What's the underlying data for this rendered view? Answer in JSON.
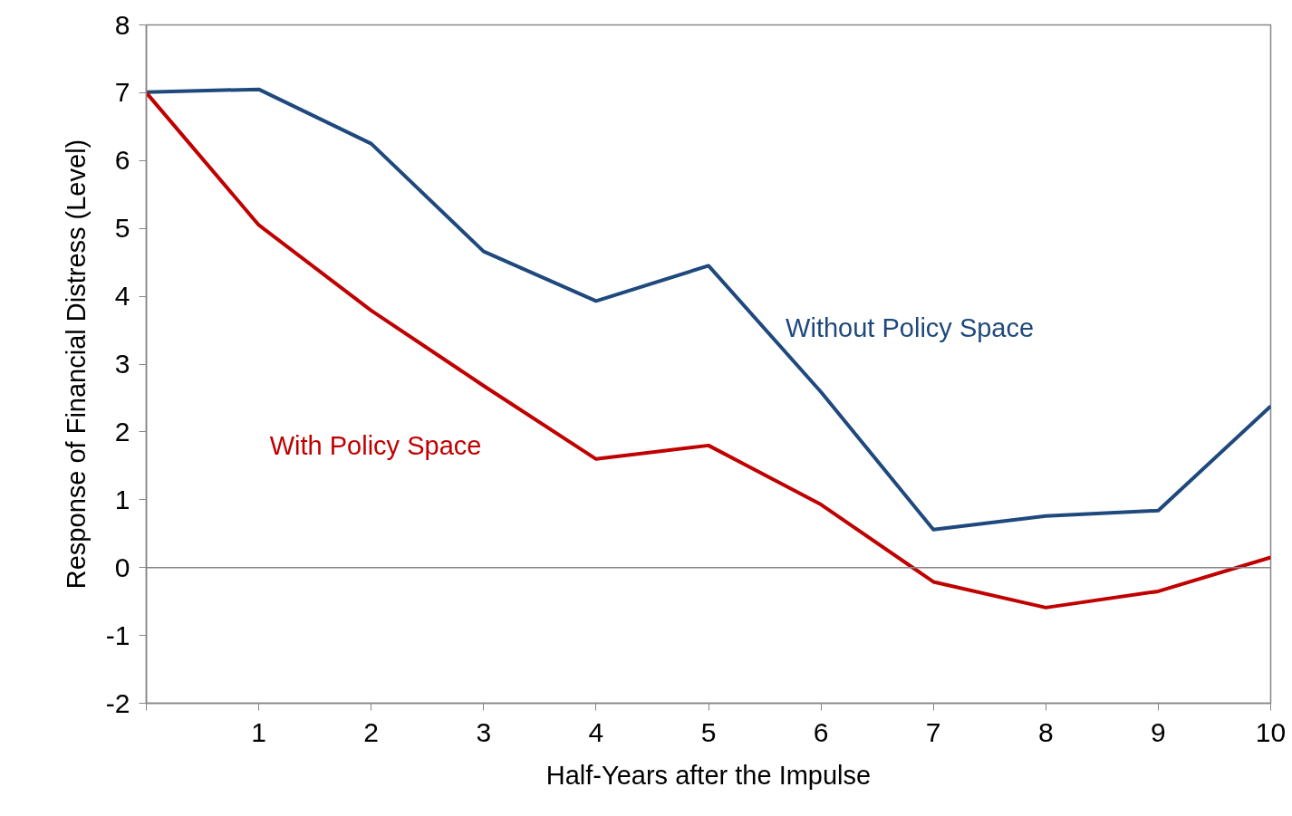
{
  "chart_data": {
    "type": "line",
    "xlabel": "Half-Years after the Impulse",
    "ylabel": "Response of Financial Distress (Level)",
    "x": [
      0,
      1,
      2,
      3,
      4,
      5,
      6,
      7,
      8,
      9,
      10
    ],
    "series": [
      {
        "name": "Without Policy Space",
        "color": "#1f497d",
        "values": [
          7.01,
          7.05,
          6.25,
          4.66,
          3.93,
          4.45,
          2.59,
          0.56,
          0.76,
          0.84,
          2.38
        ]
      },
      {
        "name": "With Policy Space",
        "color": "#c00000",
        "values": [
          7.0,
          5.05,
          3.79,
          2.68,
          1.6,
          1.8,
          0.93,
          -0.21,
          -0.59,
          -0.35,
          0.15
        ]
      }
    ],
    "xlim": [
      0,
      10
    ],
    "xticks": [
      {
        "value": 0,
        "label": null
      },
      1,
      2,
      3,
      4,
      5,
      6,
      7,
      8,
      9,
      10
    ],
    "ylim": [
      -2,
      8
    ],
    "yticks": [
      -2,
      -1,
      0,
      1,
      2,
      3,
      4,
      5,
      6,
      7,
      8
    ],
    "ref_lines": [
      {
        "axis": "y",
        "value": 0,
        "color": "#868686"
      }
    ],
    "grid": false,
    "marker": "none",
    "line_style": "solid"
  }
}
